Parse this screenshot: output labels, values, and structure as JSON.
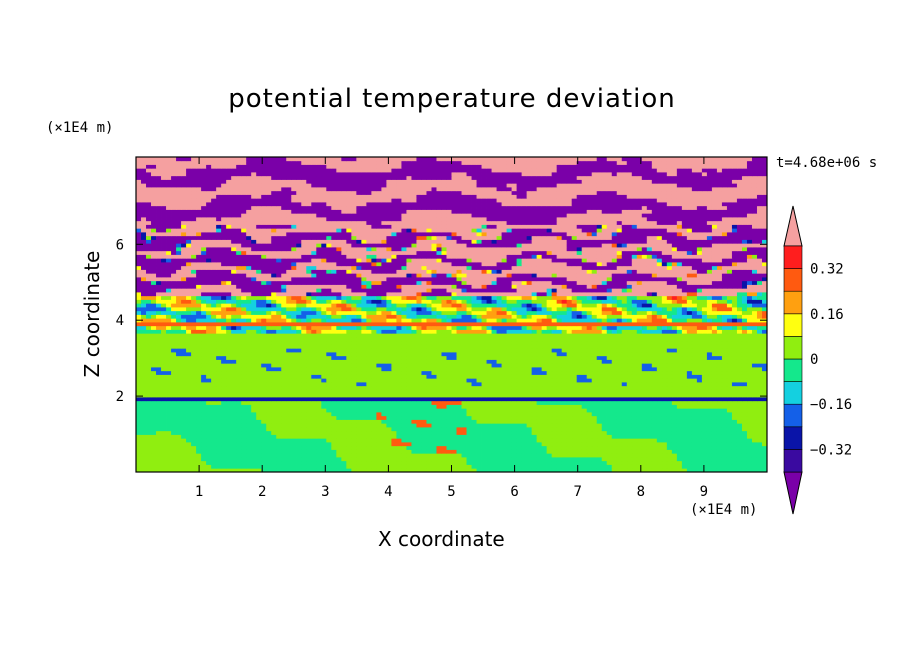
{
  "chart_data": {
    "type": "heatmap",
    "title": "potential temperature deviation",
    "xlabel": "X coordinate",
    "ylabel": "Z coordinate",
    "x_multiplier": "(×1E4 m)",
    "y_multiplier": "(×1E4 m)",
    "time_label": "t=4.68e+06 s",
    "xlim": [
      0,
      10
    ],
    "ylim": [
      0,
      8.3
    ],
    "xticks": [
      1,
      2,
      3,
      4,
      5,
      6,
      7,
      8,
      9
    ],
    "yticks": [
      2,
      4,
      6
    ],
    "colorbar": {
      "levels": [
        -0.4,
        -0.32,
        -0.24,
        -0.16,
        -0.08,
        0,
        0.08,
        0.16,
        0.24,
        0.32,
        0.4
      ],
      "tick_labels": [
        "-0.32",
        "-0.16",
        "0",
        "0.16",
        "0.32"
      ],
      "colors": [
        "#7a00a8",
        "#3a0aa0",
        "#0a14a8",
        "#1460e8",
        "#14d0e0",
        "#14e88c",
        "#90ee10",
        "#ffff10",
        "#ffa010",
        "#ff5a10",
        "#ff1e1e",
        "#f5a0a0"
      ],
      "extend": "both"
    },
    "layers": [
      {
        "z_range": [
          6.5,
          8.3
        ],
        "description_value": "alternating ≥0.4 and ≤-0.4"
      },
      {
        "z_range": [
          4.6,
          6.5
        ],
        "description_value": "mixed ±0.4 with fine structure"
      },
      {
        "z_range": [
          3.7,
          4.6
        ],
        "description_value": "mixed -0.24 to 0.32"
      },
      {
        "z_range": [
          2.0,
          3.7
        ],
        "description_value": "mostly 0 to 0.08"
      },
      {
        "z_range": [
          0.0,
          2.0
        ],
        "description_value": "mostly 0 to 0.08 with -0.08 patches"
      }
    ]
  }
}
